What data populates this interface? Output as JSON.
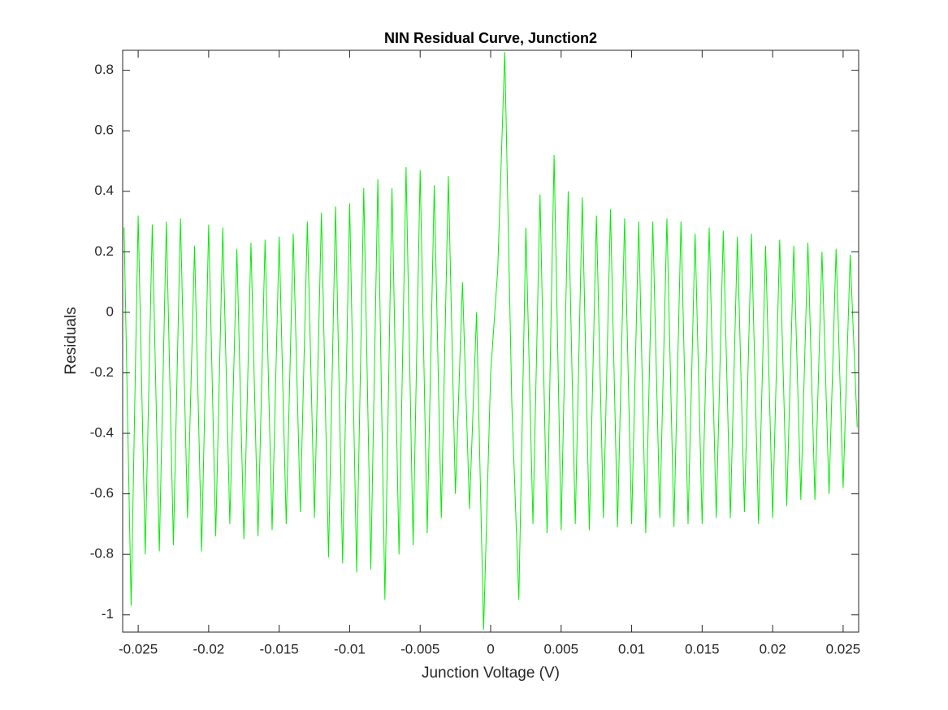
{
  "chart_data": {
    "type": "line",
    "title": "NIN Residual Curve, Junction2",
    "xlabel": "Junction Voltage (V)",
    "ylabel": "Residuals",
    "x": [
      -0.026,
      -0.0255,
      -0.025,
      -0.0245,
      -0.024,
      -0.0235,
      -0.023,
      -0.0225,
      -0.022,
      -0.0215,
      -0.021,
      -0.0205,
      -0.02,
      -0.0195,
      -0.019,
      -0.0185,
      -0.018,
      -0.0175,
      -0.017,
      -0.0165,
      -0.016,
      -0.0155,
      -0.015,
      -0.0145,
      -0.014,
      -0.0135,
      -0.013,
      -0.0125,
      -0.012,
      -0.0115,
      -0.011,
      -0.0105,
      -0.01,
      -0.0095,
      -0.009,
      -0.0085,
      -0.008,
      -0.0075,
      -0.007,
      -0.0065,
      -0.006,
      -0.0055,
      -0.005,
      -0.0045,
      -0.004,
      -0.0035,
      -0.003,
      -0.0025,
      -0.002,
      -0.0015,
      -0.001,
      -0.0005,
      0,
      0.0005,
      0.001,
      0.0015,
      0.002,
      0.0025,
      0.003,
      0.0035,
      0.004,
      0.0045,
      0.005,
      0.0055,
      0.006,
      0.0065,
      0.007,
      0.0075,
      0.008,
      0.0085,
      0.009,
      0.0095,
      0.01,
      0.0105,
      0.011,
      0.0115,
      0.012,
      0.0125,
      0.013,
      0.0135,
      0.014,
      0.0145,
      0.015,
      0.0155,
      0.016,
      0.0165,
      0.017,
      0.0175,
      0.018,
      0.0185,
      0.019,
      0.0195,
      0.02,
      0.0205,
      0.021,
      0.0215,
      0.022,
      0.0225,
      0.023,
      0.0235,
      0.024,
      0.0245,
      0.025,
      0.0255,
      0.026
    ],
    "series": [
      {
        "color": "#00ee00",
        "values": [
          0.28,
          -0.97,
          0.32,
          -0.8,
          0.29,
          -0.79,
          0.3,
          -0.77,
          0.31,
          -0.68,
          0.22,
          -0.79,
          0.29,
          -0.74,
          0.28,
          -0.7,
          0.21,
          -0.75,
          0.23,
          -0.74,
          0.24,
          -0.72,
          0.25,
          -0.7,
          0.26,
          -0.66,
          0.3,
          -0.68,
          0.33,
          -0.81,
          0.35,
          -0.83,
          0.36,
          -0.86,
          0.41,
          -0.85,
          0.44,
          -0.95,
          0.41,
          -0.8,
          0.48,
          -0.77,
          0.47,
          -0.73,
          0.42,
          -0.68,
          0.45,
          -0.6,
          0.1,
          -0.65,
          0.0,
          -1.05,
          -0.2,
          0.14,
          0.86,
          -0.3,
          -0.95,
          0.28,
          -0.7,
          0.39,
          -0.73,
          0.52,
          -0.72,
          0.4,
          -0.7,
          0.38,
          -0.72,
          0.32,
          -0.68,
          0.34,
          -0.71,
          0.31,
          -0.7,
          0.3,
          -0.73,
          0.3,
          -0.68,
          0.31,
          -0.71,
          0.3,
          -0.7,
          0.26,
          -0.7,
          0.28,
          -0.68,
          0.27,
          -0.68,
          0.25,
          -0.66,
          0.26,
          -0.7,
          0.22,
          -0.68,
          0.24,
          -0.64,
          0.22,
          -0.62,
          0.23,
          -0.62,
          0.2,
          -0.6,
          0.21,
          -0.58,
          0.19,
          -0.38
        ]
      }
    ],
    "xlim": [
      -0.0261,
      0.0261
    ],
    "ylim": [
      -1.057,
      0.866
    ],
    "xticks": [
      -0.025,
      -0.02,
      -0.015,
      -0.01,
      -0.005,
      0,
      0.005,
      0.01,
      0.015,
      0.02,
      0.025
    ],
    "yticks": [
      -1,
      -0.8,
      -0.6,
      -0.4,
      -0.2,
      0,
      0.2,
      0.4,
      0.6,
      0.8
    ]
  }
}
